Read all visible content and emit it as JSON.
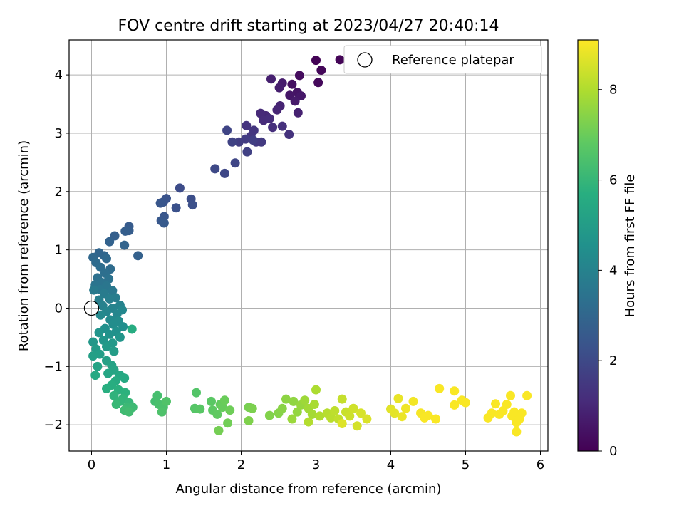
{
  "chart_data": {
    "type": "scatter",
    "title": "FOV centre drift starting at 2023/04/27 20:40:14",
    "xlabel": "Angular distance from reference (arcmin)",
    "ylabel": "Rotation from reference (arcmin)",
    "xlim": [
      -0.3,
      6.1
    ],
    "ylim": [
      -2.45,
      4.6
    ],
    "xticks": [
      0,
      1,
      2,
      3,
      4,
      5,
      6
    ],
    "yticks": [
      -2,
      -1,
      0,
      1,
      2,
      3,
      4
    ],
    "grid": true,
    "legend": {
      "position": "top-right",
      "entries": [
        "Reference platepar"
      ]
    },
    "reference_point": {
      "x": 0,
      "y": 0
    },
    "colorbar": {
      "label": "Hours from first FF file",
      "range": [
        0,
        9.1
      ],
      "ticks": [
        0,
        2,
        4,
        6,
        8
      ],
      "colormap": "viridis"
    },
    "series": [
      {
        "columns": [
          "x",
          "y",
          "hours"
        ],
        "points": [
          [
            3.0,
            4.25,
            0.05
          ],
          [
            3.32,
            4.26,
            0.1
          ],
          [
            3.07,
            4.08,
            0.15
          ],
          [
            3.03,
            3.87,
            0.2
          ],
          [
            2.78,
            3.99,
            0.3
          ],
          [
            2.68,
            3.84,
            0.4
          ],
          [
            2.75,
            3.7,
            0.5
          ],
          [
            2.65,
            3.65,
            0.55
          ],
          [
            2.8,
            3.64,
            0.6
          ],
          [
            2.72,
            3.55,
            0.65
          ],
          [
            2.55,
            3.86,
            0.7
          ],
          [
            2.51,
            3.78,
            0.75
          ],
          [
            2.4,
            3.93,
            0.8
          ],
          [
            2.76,
            3.35,
            0.85
          ],
          [
            2.52,
            3.47,
            0.9
          ],
          [
            2.48,
            3.4,
            0.95
          ],
          [
            2.33,
            3.3,
            1.0
          ],
          [
            2.26,
            3.34,
            1.05
          ],
          [
            2.3,
            3.22,
            1.1
          ],
          [
            2.38,
            3.25,
            1.15
          ],
          [
            2.42,
            3.1,
            1.2
          ],
          [
            2.55,
            3.12,
            1.25
          ],
          [
            2.64,
            2.98,
            1.3
          ],
          [
            2.07,
            3.13,
            1.35
          ],
          [
            2.17,
            3.05,
            1.4
          ],
          [
            2.13,
            2.95,
            1.45
          ],
          [
            2.2,
            2.85,
            1.5
          ],
          [
            2.27,
            2.85,
            1.55
          ],
          [
            2.06,
            2.9,
            1.6
          ],
          [
            1.97,
            2.85,
            1.65
          ],
          [
            2.16,
            2.88,
            1.7
          ],
          [
            2.08,
            2.68,
            1.75
          ],
          [
            1.88,
            2.85,
            1.8
          ],
          [
            1.81,
            3.05,
            1.85
          ],
          [
            1.92,
            2.49,
            1.9
          ],
          [
            1.78,
            2.31,
            1.95
          ],
          [
            1.65,
            2.39,
            2.0
          ],
          [
            1.18,
            2.06,
            2.1
          ],
          [
            1.33,
            1.87,
            2.15
          ],
          [
            1.35,
            1.77,
            2.2
          ],
          [
            1.13,
            1.72,
            2.25
          ],
          [
            1.0,
            1.88,
            2.3
          ],
          [
            0.96,
            1.82,
            2.35
          ],
          [
            0.92,
            1.8,
            2.4
          ],
          [
            0.97,
            1.57,
            2.45
          ],
          [
            0.93,
            1.5,
            2.5
          ],
          [
            0.97,
            1.46,
            2.55
          ],
          [
            0.5,
            1.4,
            2.6
          ],
          [
            0.5,
            1.33,
            2.65
          ],
          [
            0.45,
            1.32,
            2.7
          ],
          [
            0.31,
            1.24,
            2.75
          ],
          [
            0.62,
            0.9,
            2.8
          ],
          [
            0.24,
            1.14,
            2.85
          ],
          [
            0.44,
            1.08,
            2.9
          ],
          [
            0.1,
            0.95,
            2.95
          ],
          [
            0.17,
            0.9,
            3.0
          ],
          [
            0.02,
            0.87,
            3.05
          ],
          [
            0.2,
            0.85,
            3.1
          ],
          [
            0.06,
            0.78,
            3.15
          ],
          [
            0.25,
            0.67,
            3.2
          ],
          [
            0.12,
            0.7,
            3.25
          ],
          [
            0.18,
            0.6,
            3.3
          ],
          [
            0.08,
            0.52,
            3.35
          ],
          [
            0.23,
            0.5,
            3.4
          ],
          [
            0.14,
            0.44,
            3.45
          ],
          [
            0.05,
            0.4,
            3.5
          ],
          [
            0.2,
            0.38,
            3.55
          ],
          [
            0.11,
            0.32,
            3.6
          ],
          [
            0.28,
            0.3,
            3.65
          ],
          [
            0.03,
            0.31,
            3.7
          ],
          [
            0.17,
            0.25,
            3.75
          ],
          [
            0.32,
            0.18,
            3.8
          ],
          [
            0.24,
            0.16,
            3.85
          ],
          [
            0.1,
            0.14,
            3.9
          ],
          [
            0.15,
            0.04,
            3.95
          ],
          [
            0.38,
            0.05,
            4.0
          ],
          [
            0.28,
            0.0,
            4.05
          ],
          [
            0.2,
            -0.06,
            4.1
          ],
          [
            0.34,
            -0.1,
            4.15
          ],
          [
            0.41,
            -0.03,
            4.2
          ],
          [
            0.12,
            -0.12,
            4.25
          ],
          [
            0.25,
            -0.2,
            4.3
          ],
          [
            0.36,
            -0.22,
            4.35
          ],
          [
            0.29,
            -0.28,
            4.4
          ],
          [
            0.42,
            -0.32,
            4.45
          ],
          [
            0.18,
            -0.35,
            4.5
          ],
          [
            0.33,
            -0.4,
            4.55
          ],
          [
            0.24,
            -0.45,
            4.6
          ],
          [
            0.1,
            -0.42,
            4.65
          ],
          [
            0.38,
            -0.5,
            4.7
          ],
          [
            0.16,
            -0.55,
            4.75
          ],
          [
            0.02,
            -0.58,
            4.8
          ],
          [
            0.28,
            -0.6,
            4.85
          ],
          [
            0.2,
            -0.66,
            4.9
          ],
          [
            0.06,
            -0.7,
            4.95
          ],
          [
            0.3,
            -0.74,
            5.0
          ],
          [
            0.11,
            -0.79,
            5.05
          ],
          [
            0.02,
            -0.82,
            5.1
          ],
          [
            0.2,
            -0.9,
            5.15
          ],
          [
            0.27,
            -0.98,
            5.2
          ],
          [
            0.08,
            -1.0,
            5.25
          ],
          [
            0.3,
            -1.06,
            5.3
          ],
          [
            0.22,
            -1.12,
            5.35
          ],
          [
            0.38,
            -1.15,
            5.4
          ],
          [
            0.05,
            -1.15,
            5.45
          ],
          [
            0.44,
            -1.2,
            5.5
          ],
          [
            0.32,
            -1.25,
            5.55
          ],
          [
            0.54,
            -0.36,
            5.6
          ],
          [
            0.27,
            -1.32,
            5.65
          ],
          [
            0.2,
            -1.38,
            5.7
          ],
          [
            0.36,
            -1.4,
            5.75
          ],
          [
            0.45,
            -1.45,
            5.8
          ],
          [
            0.3,
            -1.5,
            5.85
          ],
          [
            0.42,
            -1.55,
            5.9
          ],
          [
            0.38,
            -1.6,
            5.95
          ],
          [
            0.5,
            -1.62,
            6.0
          ],
          [
            0.33,
            -1.65,
            6.05
          ],
          [
            0.47,
            -1.7,
            6.1
          ],
          [
            0.55,
            -1.7,
            6.15
          ],
          [
            0.44,
            -1.75,
            6.2
          ],
          [
            0.5,
            -1.78,
            6.25
          ],
          [
            0.85,
            -1.6,
            6.3
          ],
          [
            0.88,
            -1.5,
            6.35
          ],
          [
            0.9,
            -1.65,
            6.4
          ],
          [
            0.96,
            -1.7,
            6.45
          ],
          [
            0.94,
            -1.78,
            6.5
          ],
          [
            1.0,
            -1.6,
            6.55
          ],
          [
            1.4,
            -1.45,
            6.6
          ],
          [
            1.38,
            -1.72,
            6.65
          ],
          [
            1.45,
            -1.73,
            6.7
          ],
          [
            1.6,
            -1.6,
            6.75
          ],
          [
            1.62,
            -1.75,
            6.8
          ],
          [
            1.68,
            -1.82,
            6.85
          ],
          [
            1.72,
            -1.65,
            6.9
          ],
          [
            1.75,
            -1.7,
            6.95
          ],
          [
            1.78,
            -1.58,
            7.0
          ],
          [
            1.85,
            -1.75,
            7.05
          ],
          [
            1.82,
            -1.97,
            7.1
          ],
          [
            1.7,
            -2.1,
            7.15
          ],
          [
            2.1,
            -1.7,
            7.2
          ],
          [
            2.15,
            -1.72,
            7.25
          ],
          [
            2.1,
            -1.93,
            7.3
          ],
          [
            2.38,
            -1.84,
            7.35
          ],
          [
            2.5,
            -1.8,
            7.4
          ],
          [
            2.55,
            -1.72,
            7.45
          ],
          [
            2.6,
            -1.56,
            7.5
          ],
          [
            2.7,
            -1.6,
            7.55
          ],
          [
            2.75,
            -1.78,
            7.6
          ],
          [
            2.8,
            -1.66,
            7.65
          ],
          [
            2.68,
            -1.9,
            7.7
          ],
          [
            2.85,
            -1.58,
            7.75
          ],
          [
            2.9,
            -1.72,
            7.8
          ],
          [
            2.95,
            -1.82,
            7.85
          ],
          [
            2.98,
            -1.65,
            7.9
          ],
          [
            3.0,
            -1.4,
            7.95
          ],
          [
            3.05,
            -1.85,
            8.0
          ],
          [
            2.9,
            -1.95,
            8.05
          ],
          [
            3.15,
            -1.8,
            8.1
          ],
          [
            3.2,
            -1.88,
            8.15
          ],
          [
            3.25,
            -1.76,
            8.2
          ],
          [
            3.3,
            -1.9,
            8.25
          ],
          [
            3.35,
            -1.56,
            8.3
          ],
          [
            3.4,
            -1.78,
            8.35
          ],
          [
            3.45,
            -1.85,
            8.4
          ],
          [
            3.5,
            -1.72,
            8.45
          ],
          [
            3.55,
            -2.02,
            8.5
          ],
          [
            3.6,
            -1.8,
            8.55
          ],
          [
            3.68,
            -1.9,
            8.6
          ],
          [
            3.35,
            -1.98,
            8.65
          ],
          [
            4.0,
            -1.73,
            8.7
          ],
          [
            4.05,
            -1.8,
            8.75
          ],
          [
            4.1,
            -1.55,
            8.8
          ],
          [
            4.15,
            -1.86,
            8.85
          ],
          [
            4.2,
            -1.72,
            8.9
          ],
          [
            4.3,
            -1.6,
            8.95
          ],
          [
            4.4,
            -1.8,
            9.0
          ],
          [
            4.45,
            -1.88,
            9.05
          ],
          [
            4.5,
            -1.84,
            9.05
          ],
          [
            4.6,
            -1.9,
            9.05
          ],
          [
            4.65,
            -1.38,
            9.05
          ],
          [
            4.85,
            -1.42,
            9.05
          ],
          [
            4.85,
            -1.66,
            9.05
          ],
          [
            4.95,
            -1.58,
            9.05
          ],
          [
            5.0,
            -1.62,
            9.05
          ],
          [
            5.3,
            -1.88,
            9.05
          ],
          [
            5.35,
            -1.8,
            9.05
          ],
          [
            5.4,
            -1.64,
            9.05
          ],
          [
            5.45,
            -1.82,
            9.05
          ],
          [
            5.5,
            -1.76,
            9.05
          ],
          [
            5.55,
            -1.65,
            9.05
          ],
          [
            5.6,
            -1.5,
            9.05
          ],
          [
            5.62,
            -1.85,
            9.05
          ],
          [
            5.65,
            -1.78,
            9.05
          ],
          [
            5.68,
            -1.96,
            9.05
          ],
          [
            5.72,
            -1.9,
            9.05
          ],
          [
            5.75,
            -1.8,
            9.05
          ],
          [
            5.82,
            -1.5,
            9.05
          ],
          [
            5.68,
            -2.12,
            9.05
          ]
        ]
      }
    ]
  }
}
